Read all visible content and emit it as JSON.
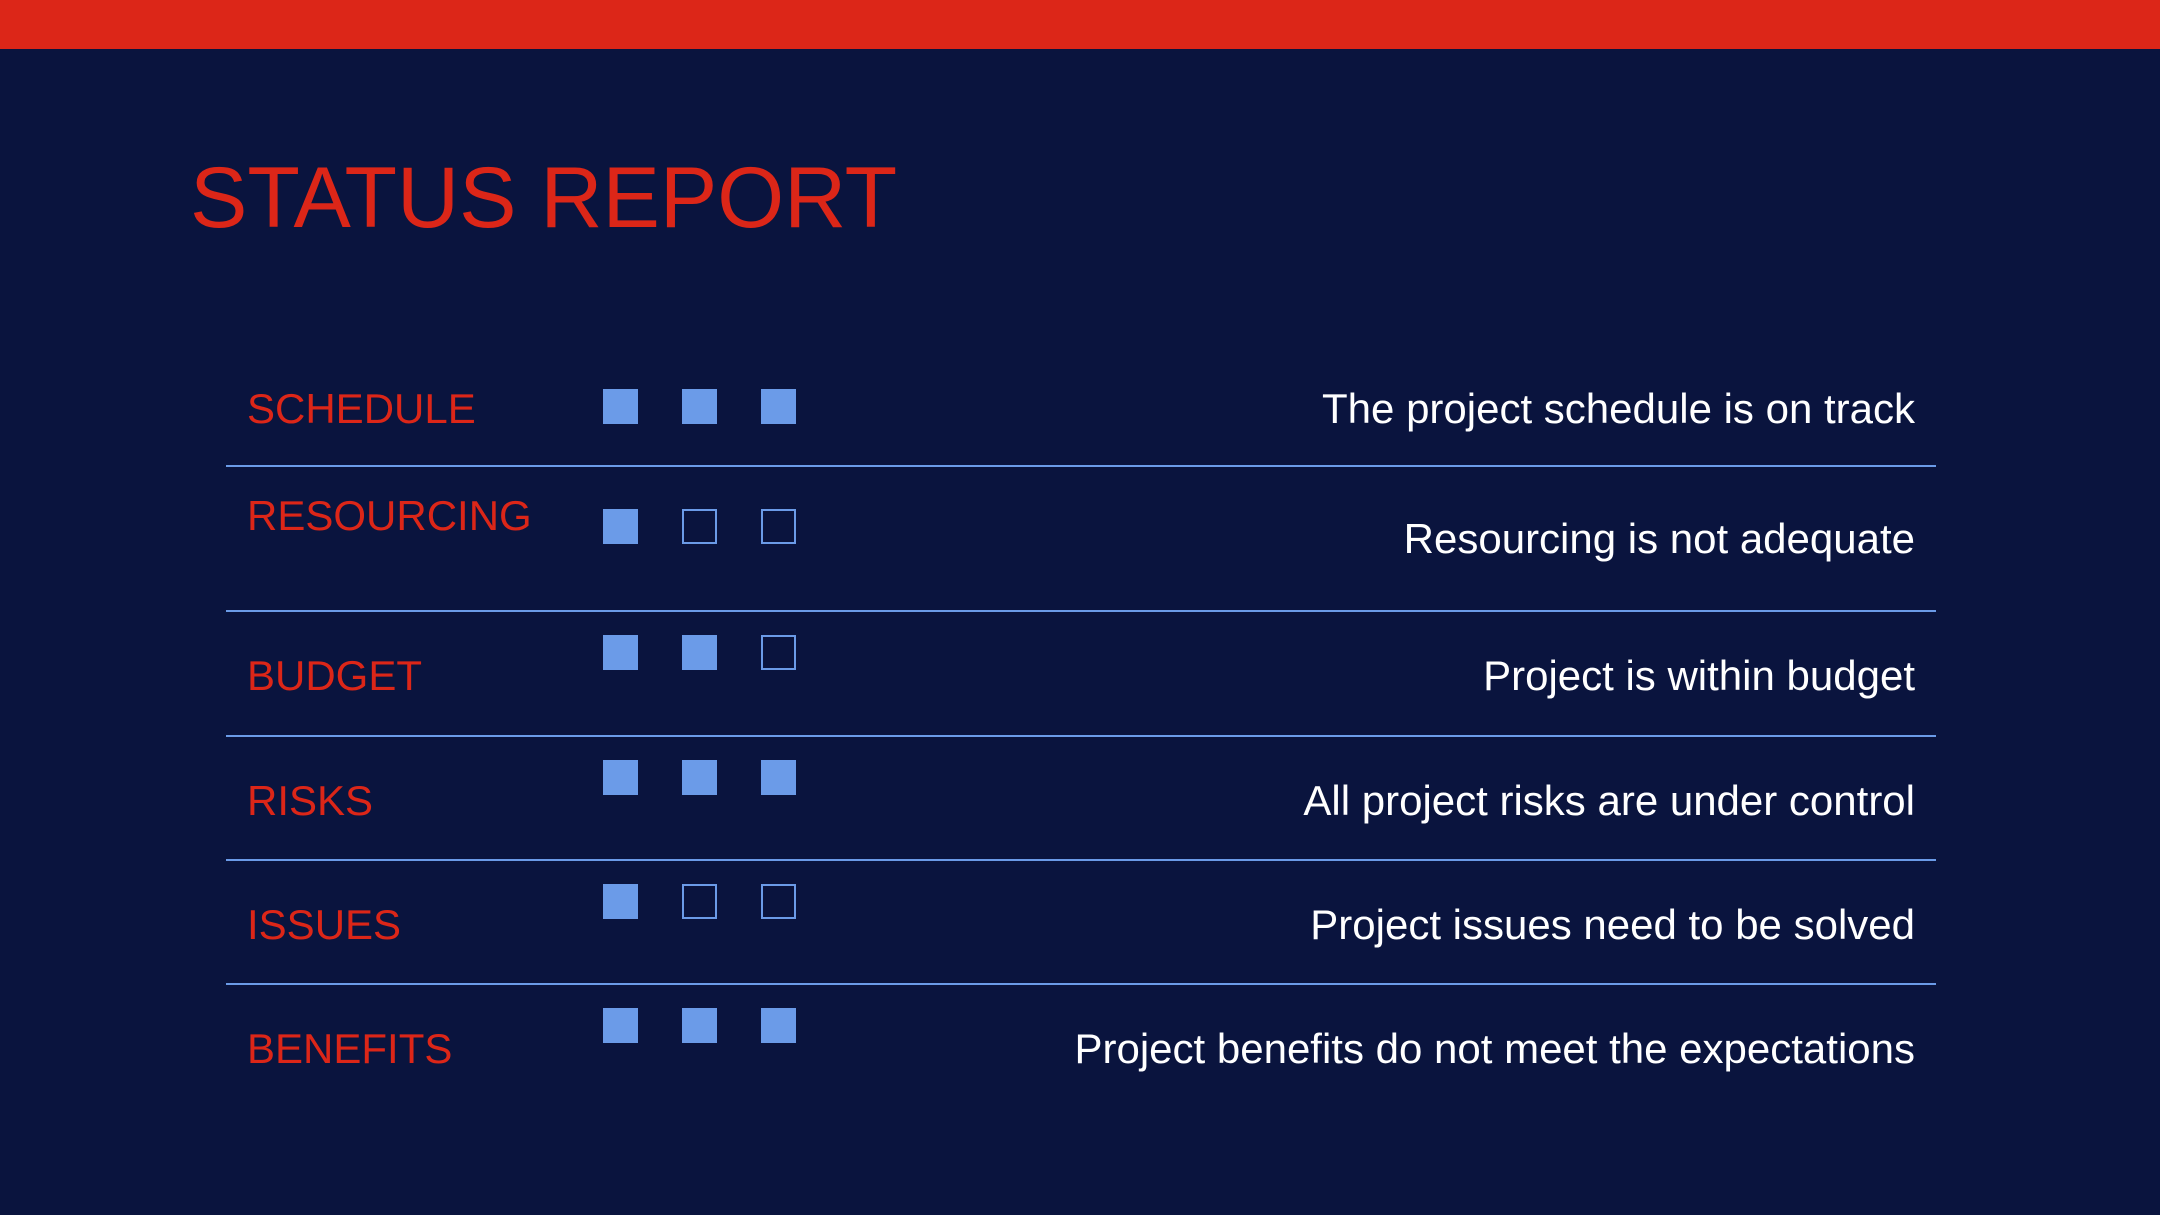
{
  "slide": {
    "title": "STATUS REPORT",
    "rows": [
      {
        "label": "SCHEDULE",
        "indicators": [
          true,
          true,
          true
        ],
        "description": "The project schedule is on track"
      },
      {
        "label": "RESOURCING",
        "indicators": [
          true,
          false,
          false
        ],
        "description": "Resourcing is not adequate"
      },
      {
        "label": "BUDGET",
        "indicators": [
          true,
          true,
          false
        ],
        "description": "Project is within budget"
      },
      {
        "label": "RISKS",
        "indicators": [
          true,
          true,
          true
        ],
        "description": "All project risks are under control"
      },
      {
        "label": "ISSUES",
        "indicators": [
          true,
          false,
          false
        ],
        "description": "Project issues need to be solved"
      },
      {
        "label": "BENEFITS",
        "indicators": [
          true,
          true,
          true
        ],
        "description": "Project benefits do not meet the expectations"
      }
    ]
  },
  "colors": {
    "background": "#0a143e",
    "accent_red": "#dc2618",
    "indicator_blue": "#6b9be8",
    "text_white": "#ffffff"
  }
}
